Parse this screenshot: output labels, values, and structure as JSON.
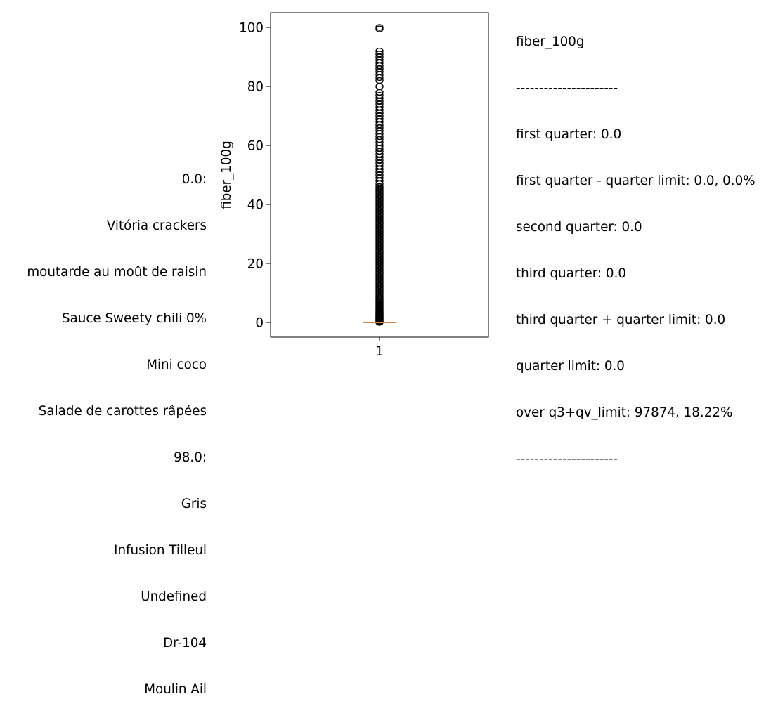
{
  "left_labels": [
    "0.0:",
    "Vitória crackers",
    "moutarde au moût de raisin",
    "Sauce Sweety chili 0%",
    "Mini coco",
    "Salade de carottes râpées",
    "98.0:",
    "Gris",
    "Infusion Tilleul",
    "Undefined",
    "Dr-104",
    "Moulin Ail"
  ],
  "stats": {
    "title": "fiber_100g",
    "separator_top": "----------------------",
    "lines": [
      "first quarter: 0.0",
      "first quarter - quarter limit: 0.0, 0.0%",
      "second quarter: 0.0",
      "third quarter: 0.0",
      "third quarter + quarter limit: 0.0",
      "quarter limit: 0.0",
      "over q3+qv_limit: 97874, 18.22%"
    ],
    "separator_bottom": "----------------------"
  },
  "chart_data": {
    "type": "box",
    "ylabel": "fiber_100g",
    "xlabel": "",
    "categories": [
      "1"
    ],
    "ylim": [
      -5,
      105
    ],
    "yticks": [
      0,
      20,
      40,
      60,
      80,
      100
    ],
    "box": {
      "q1": 0.0,
      "median": 0.0,
      "q3": 0.0,
      "whisker_low": 0.0,
      "whisker_high": 0.0
    },
    "outliers": [
      0,
      0.2,
      0.4,
      0.6,
      0.8,
      1,
      1.2,
      1.4,
      1.6,
      1.8,
      2,
      2.2,
      2.4,
      2.6,
      2.8,
      3,
      3.3,
      3.6,
      3.9,
      4.2,
      4.5,
      4.8,
      5.2,
      5.6,
      6,
      6.4,
      6.8,
      7.2,
      7.6,
      8,
      8.5,
      9,
      9.5,
      10,
      10.5,
      11,
      11.5,
      12,
      12.5,
      13,
      13.5,
      14,
      14.5,
      15,
      15.5,
      16,
      16.5,
      17,
      17.5,
      18,
      18.5,
      19,
      19.5,
      20,
      20.5,
      21,
      21.5,
      22,
      22.5,
      23,
      23.5,
      24,
      24.5,
      25,
      25.5,
      26,
      26.5,
      27,
      27.5,
      28,
      28.5,
      29,
      29.5,
      30,
      30.5,
      31,
      31.5,
      32,
      32.5,
      33,
      33.5,
      34,
      34.5,
      35,
      35.5,
      36,
      36.5,
      37,
      37.5,
      38,
      38.5,
      39,
      39.5,
      40,
      40.5,
      41,
      41.5,
      42,
      42.5,
      43,
      43.5,
      44,
      44.5,
      45,
      45.5,
      46,
      47,
      48,
      49,
      50,
      51,
      52,
      53,
      54,
      55,
      56,
      57,
      58,
      59,
      60,
      61,
      62,
      63,
      64,
      65,
      66,
      67,
      68,
      69,
      70,
      71,
      72,
      73,
      74,
      75,
      76,
      77,
      78,
      80,
      82,
      83,
      84,
      85,
      86,
      87,
      88,
      89,
      90,
      91,
      92,
      99.5,
      100
    ],
    "colors": {
      "median": "#c8824a",
      "marker": "#000000"
    }
  }
}
